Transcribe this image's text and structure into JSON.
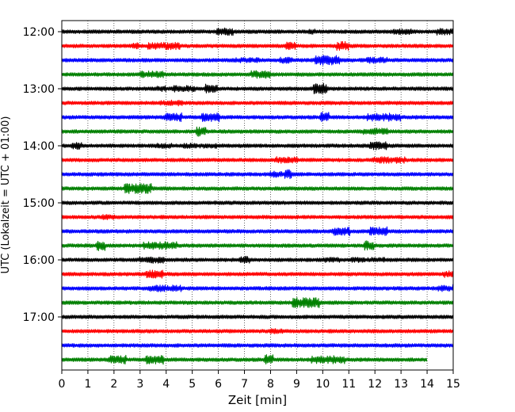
{
  "chart_data": {
    "type": "line",
    "title": "",
    "xlabel": "Zeit  [min]",
    "ylabel": "UTC (Lokalzeit = UTC + 01:00)",
    "xlim": [
      0,
      15
    ],
    "x_ticks": [
      0,
      1,
      2,
      3,
      4,
      5,
      6,
      7,
      8,
      9,
      10,
      11,
      12,
      13,
      14,
      15
    ],
    "y_tick_labels": [
      "12:00",
      "13:00",
      "14:00",
      "15:00",
      "16:00",
      "17:00"
    ],
    "grid": "vertical dotted at each minute",
    "trace_colors": [
      "#000000",
      "#ff0000",
      "#0000ff",
      "#008000"
    ],
    "traces": [
      {
        "start": "12:00",
        "duration_min": 15
      },
      {
        "start": "12:15",
        "duration_min": 15
      },
      {
        "start": "12:30",
        "duration_min": 15
      },
      {
        "start": "12:45",
        "duration_min": 15
      },
      {
        "start": "13:00",
        "duration_min": 15
      },
      {
        "start": "13:15",
        "duration_min": 15
      },
      {
        "start": "13:30",
        "duration_min": 15
      },
      {
        "start": "13:45",
        "duration_min": 15
      },
      {
        "start": "14:00",
        "duration_min": 15
      },
      {
        "start": "14:15",
        "duration_min": 15
      },
      {
        "start": "14:30",
        "duration_min": 15
      },
      {
        "start": "14:45",
        "duration_min": 15
      },
      {
        "start": "15:00",
        "duration_min": 15
      },
      {
        "start": "15:15",
        "duration_min": 15
      },
      {
        "start": "15:30",
        "duration_min": 15
      },
      {
        "start": "15:45",
        "duration_min": 15
      },
      {
        "start": "16:00",
        "duration_min": 15
      },
      {
        "start": "16:15",
        "duration_min": 15
      },
      {
        "start": "16:30",
        "duration_min": 15
      },
      {
        "start": "16:45",
        "duration_min": 15
      },
      {
        "start": "17:00",
        "duration_min": 15
      },
      {
        "start": "17:15",
        "duration_min": 15
      },
      {
        "start": "17:30",
        "duration_min": 15
      },
      {
        "start": "17:45",
        "duration_min": 14
      }
    ]
  }
}
